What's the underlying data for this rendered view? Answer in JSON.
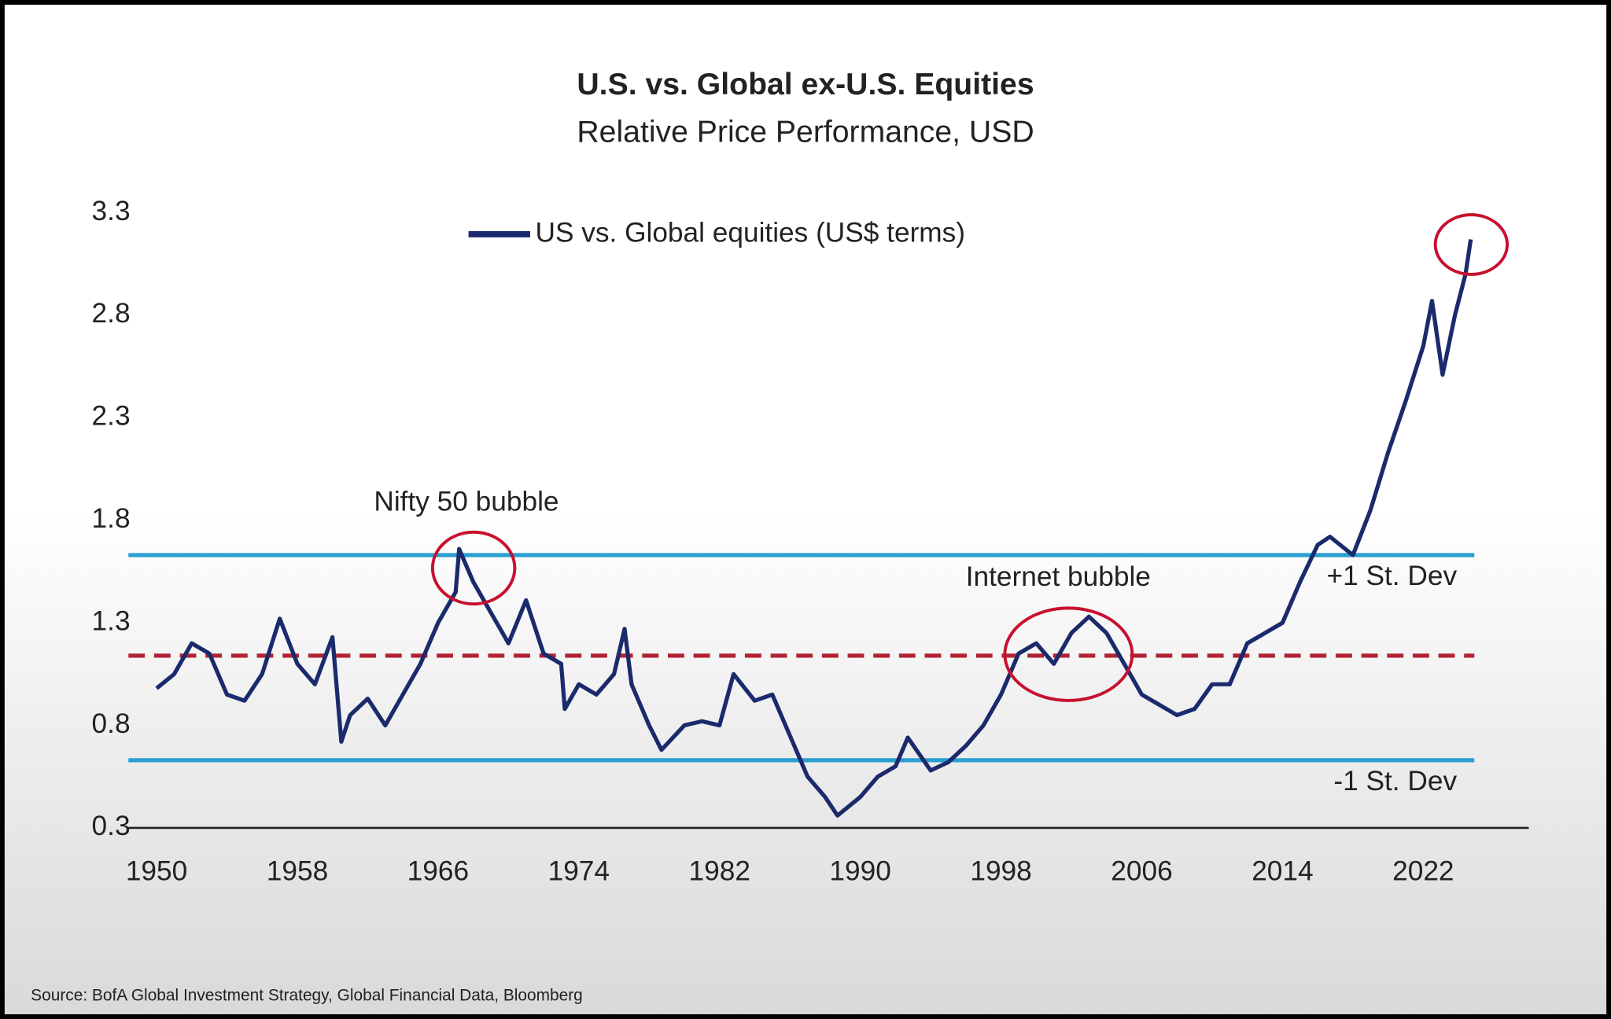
{
  "chart_data": {
    "type": "line",
    "title": "U.S. vs. Global ex-U.S. Equities",
    "subtitle": "Relative Price Performance, USD",
    "source": "Source: BofA Global Investment Strategy, Global Financial Data, Bloomberg",
    "annotations": [
      "Nifty 50 bubble",
      "Internet bubble"
    ],
    "x": [
      1950,
      1951,
      1952,
      1953,
      1954,
      1955,
      1956,
      1957,
      1958,
      1959,
      1960,
      1960.5,
      1961,
      1962,
      1963,
      1964,
      1965,
      1966,
      1967,
      1967.2,
      1968,
      1969,
      1970,
      1971,
      1972,
      1973,
      1973.2,
      1974,
      1975,
      1976,
      1976.6,
      1977,
      1978,
      1978.7,
      1980,
      1981,
      1982,
      1982.8,
      1984,
      1985,
      1986,
      1987,
      1988,
      1988.7,
      1990,
      1991,
      1992,
      1992.7,
      1994,
      1995,
      1996,
      1997,
      1998,
      1999,
      2000,
      2001,
      2002,
      2003,
      2004,
      2005,
      2006,
      2007,
      2008,
      2009,
      2010,
      2011,
      2012,
      2013,
      2014,
      2015,
      2016,
      2016.7,
      2018,
      2019,
      2020,
      2021,
      2022,
      2022.5,
      2023.1,
      2023.8,
      2024.4,
      2024.7
    ],
    "series": [
      {
        "name": "US vs. Global equities (US$ terms)",
        "color": "#1a2a6c",
        "values": [
          0.98,
          1.05,
          1.2,
          1.15,
          0.95,
          0.92,
          1.05,
          1.32,
          1.1,
          1.0,
          1.23,
          0.72,
          0.85,
          0.93,
          0.8,
          0.95,
          1.1,
          1.3,
          1.45,
          1.66,
          1.5,
          1.35,
          1.2,
          1.41,
          1.15,
          1.1,
          0.88,
          1.0,
          0.95,
          1.05,
          1.27,
          1.0,
          0.8,
          0.68,
          0.8,
          0.82,
          0.8,
          1.05,
          0.92,
          0.95,
          0.75,
          0.55,
          0.45,
          0.36,
          0.45,
          0.55,
          0.6,
          0.74,
          0.58,
          0.62,
          0.7,
          0.8,
          0.95,
          1.15,
          1.2,
          1.1,
          1.25,
          1.33,
          1.25,
          1.1,
          0.95,
          0.9,
          0.85,
          0.88,
          1.0,
          1.0,
          1.2,
          1.25,
          1.3,
          1.5,
          1.68,
          1.72,
          1.63,
          1.85,
          2.13,
          2.38,
          2.65,
          2.87,
          2.51,
          2.8,
          3.0,
          3.17
        ]
      }
    ],
    "reference_lines": [
      {
        "label": "+1 St. Dev",
        "value": 1.63,
        "color": "#2a9fd0"
      },
      {
        "value": 1.14,
        "color": "#b22234",
        "dashed": true
      },
      {
        "label": "-1 St. Dev",
        "value": 0.63,
        "color": "#2a9fd0"
      }
    ],
    "xlim": [
      1948.4,
      2028
    ],
    "xticks": [
      1950,
      1958,
      1966,
      1974,
      1982,
      1990,
      1998,
      2006,
      2014,
      2022
    ],
    "ylim": [
      0.3,
      3.3
    ],
    "yticks": [
      0.3,
      0.8,
      1.3,
      1.8,
      2.3,
      2.8,
      3.3
    ],
    "grid": false
  }
}
